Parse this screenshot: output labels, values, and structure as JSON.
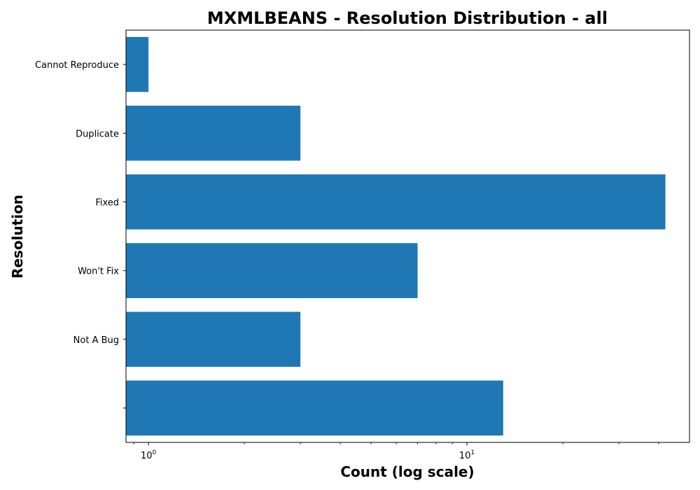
{
  "chart_data": {
    "type": "bar",
    "orientation": "horizontal",
    "title": "MXMLBEANS - Resolution Distribution - all",
    "xlabel": "Count (log scale)",
    "ylabel": "Resolution",
    "x_scale": "log",
    "xlim": [
      0.85,
      50
    ],
    "x_major_ticks": [
      {
        "base": "10",
        "exp": "0",
        "value": 1
      },
      {
        "base": "10",
        "exp": "1",
        "value": 10
      }
    ],
    "grid": false,
    "bar_color": "#1f77b4",
    "categories": [
      "Cannot Reproduce",
      "Duplicate",
      "Fixed",
      "Won't Fix",
      "Not A Bug",
      ""
    ],
    "values": [
      1,
      3,
      42,
      7,
      3,
      13
    ]
  }
}
